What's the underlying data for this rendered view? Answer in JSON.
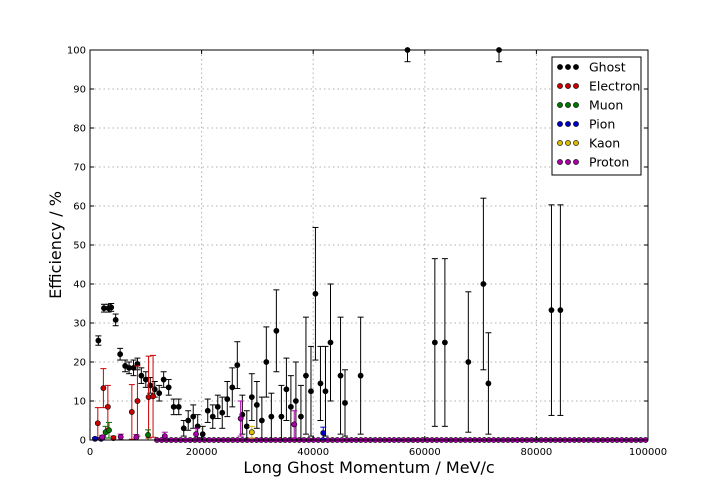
{
  "chart_data": {
    "type": "scatter",
    "xlabel": "Long Ghost Momentum / MeV/c",
    "ylabel": "Efficiency / %",
    "xlim": [
      0,
      100000
    ],
    "ylim": [
      0,
      100
    ],
    "x_ticks": [
      0,
      20000,
      40000,
      60000,
      80000,
      100000
    ],
    "y_ticks": [
      0,
      10,
      20,
      30,
      40,
      50,
      60,
      70,
      80,
      90,
      100
    ],
    "grid": true,
    "legend_position": "top-right",
    "series": [
      {
        "name": "Ghost",
        "color": "#000000",
        "points": [
          [
            1500,
            25.5,
            1.2
          ],
          [
            2500,
            33.8,
            1
          ],
          [
            3300,
            33.8,
            1
          ],
          [
            3800,
            34,
            1
          ],
          [
            4600,
            30.8,
            1.5
          ],
          [
            5400,
            22,
            1.5
          ],
          [
            6300,
            19,
            1.5
          ],
          [
            7000,
            18.5,
            1.5
          ],
          [
            7800,
            18.5,
            2
          ],
          [
            8500,
            19.5,
            1.5
          ],
          [
            9200,
            16.5,
            2
          ],
          [
            10000,
            15.5,
            2
          ],
          [
            10800,
            14,
            2
          ],
          [
            11600,
            13,
            2
          ],
          [
            12400,
            12,
            2
          ],
          [
            13200,
            15.5,
            2
          ],
          [
            14100,
            13.5,
            2
          ],
          [
            15000,
            8.5,
            2
          ],
          [
            15900,
            8.5,
            2
          ],
          [
            16800,
            3,
            2
          ],
          [
            17600,
            5,
            2.5
          ],
          [
            18500,
            6,
            3
          ],
          [
            19300,
            3.5,
            3
          ],
          [
            20200,
            1.5,
            2
          ],
          [
            21100,
            7.5,
            3
          ],
          [
            22000,
            6,
            3
          ],
          [
            22900,
            8.5,
            3
          ],
          [
            23700,
            7,
            4
          ],
          [
            24600,
            10.5,
            4.5
          ],
          [
            25500,
            13.5,
            5
          ],
          [
            26400,
            19.2,
            6
          ],
          [
            27300,
            6.5,
            5
          ],
          [
            28100,
            3.5,
            4
          ],
          [
            29000,
            11,
            6
          ],
          [
            29900,
            9,
            6
          ],
          [
            30800,
            5,
            6
          ],
          [
            31600,
            20,
            9
          ],
          [
            32500,
            6,
            6
          ],
          [
            33400,
            28,
            10.5
          ],
          [
            34300,
            6,
            8
          ],
          [
            35200,
            13,
            8
          ],
          [
            36000,
            8.5,
            8
          ],
          [
            36900,
            10,
            10
          ],
          [
            37800,
            6,
            8
          ],
          [
            38700,
            16.5,
            15
          ],
          [
            39600,
            12.5,
            11.5
          ],
          [
            40400,
            37.5,
            17
          ],
          [
            41300,
            14.5,
            9.5
          ],
          [
            42200,
            12.5,
            11.5
          ],
          [
            43100,
            25,
            15
          ],
          [
            44900,
            16.5,
            15
          ],
          [
            45700,
            9.5,
            8.5
          ],
          [
            48500,
            16.5,
            15
          ],
          [
            56900,
            100,
            3
          ],
          [
            61800,
            25,
            21.5
          ],
          [
            63600,
            25,
            21.5
          ],
          [
            67800,
            20,
            18
          ],
          [
            70500,
            40,
            22
          ],
          [
            71400,
            14.5,
            13
          ],
          [
            73300,
            100,
            3
          ],
          [
            82700,
            33.3,
            27
          ],
          [
            84300,
            33.3,
            27
          ]
        ]
      },
      {
        "name": "Electron",
        "color": "#cc0000",
        "points": [
          [
            1400,
            4.3,
            4
          ],
          [
            2400,
            13.3,
            5
          ],
          [
            3200,
            8.5,
            5.5
          ],
          [
            4200,
            0.5,
            0.5
          ],
          [
            7500,
            7.2,
            7
          ],
          [
            8500,
            10,
            9
          ],
          [
            10500,
            11,
            10.5
          ],
          [
            11300,
            11.2,
            10.5
          ]
        ]
      },
      {
        "name": "Muon",
        "color": "#007700",
        "points": [
          [
            2800,
            2,
            1.5
          ],
          [
            3400,
            2.5,
            2
          ],
          [
            10400,
            1.3,
            1.3
          ]
        ]
      },
      {
        "name": "Pion",
        "color": "#0000cc",
        "points": [
          [
            900,
            0.3,
            0.3
          ],
          [
            2000,
            0.3,
            0.3
          ],
          [
            41800,
            1.8,
            1.5
          ]
        ]
      },
      {
        "name": "Kaon",
        "color": "#ddbb00",
        "points": [
          [
            29000,
            2,
            1.5
          ]
        ]
      },
      {
        "name": "Proton",
        "color": "#aa00aa",
        "points": [
          [
            2200,
            0.7,
            0.5
          ],
          [
            5500,
            0.8,
            0.7
          ],
          [
            8300,
            0.7,
            0.7
          ],
          [
            13400,
            1,
            1
          ],
          [
            19000,
            1.5,
            1.5
          ],
          [
            27000,
            5.5,
            4.5
          ],
          [
            36600,
            4,
            3.5
          ]
        ]
      }
    ],
    "zero_band": {
      "x_start": 12000,
      "x_end": 99800,
      "step": 850,
      "y": 0,
      "color": "#aa00aa"
    }
  }
}
